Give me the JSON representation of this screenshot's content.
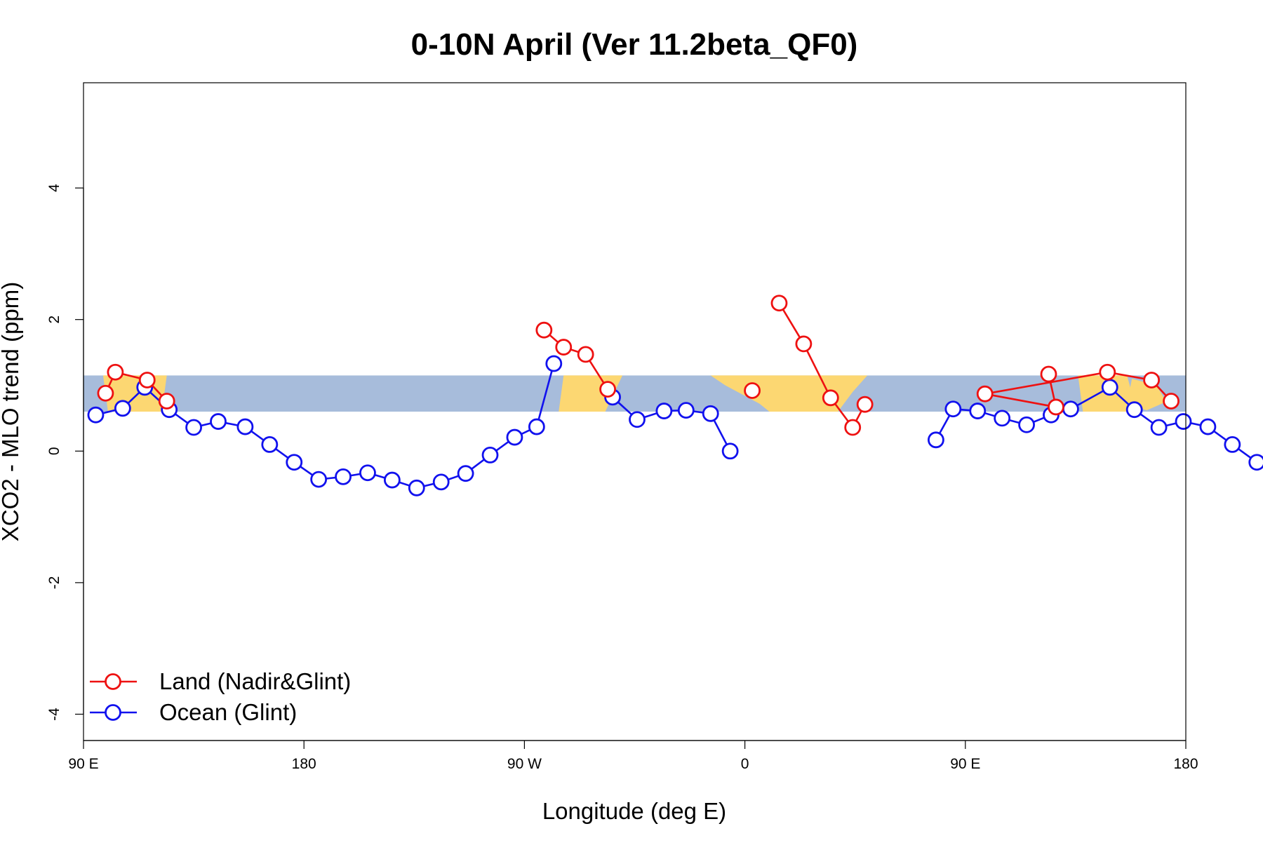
{
  "chart_data": {
    "type": "line",
    "title": "0-10N April (Ver 11.2beta_QF0)",
    "xlabel": "Longitude (deg E)",
    "ylabel": "XCO2 - MLO trend (ppm)",
    "xlim": [
      90,
      540
    ],
    "ylim": [
      -4.4,
      5.6
    ],
    "x_ticks": [
      {
        "value": 90,
        "label": "90 E"
      },
      {
        "value": 180,
        "label": "180"
      },
      {
        "value": 270,
        "label": "90 W"
      },
      {
        "value": 360,
        "label": "0"
      },
      {
        "value": 450,
        "label": "90 E"
      },
      {
        "value": 540,
        "label": "180"
      }
    ],
    "y_ticks": [
      {
        "value": -4,
        "label": "-4"
      },
      {
        "value": -2,
        "label": "-2"
      },
      {
        "value": 0,
        "label": "0"
      },
      {
        "value": 2,
        "label": "2"
      },
      {
        "value": 4,
        "label": "4"
      }
    ],
    "background_band": {
      "ymin": 0.6,
      "ymax": 1.15,
      "description": "land/ocean map strip 0-10N"
    },
    "colors": {
      "land": "#ee1111",
      "ocean": "#1111ee",
      "band_ocean": "#a7bcdb",
      "band_land": "#fcd772"
    },
    "legend": {
      "position": "bottom-left"
    },
    "series": [
      {
        "name": "Land (Nadir&Glint)",
        "color": "#ee1111",
        "segments": [
          [
            [
              99,
              0.88
            ],
            [
              103,
              1.2
            ],
            [
              116,
              1.08
            ],
            [
              124,
              0.76
            ]
          ],
          [
            [
              278,
              1.84
            ],
            [
              286,
              1.58
            ],
            [
              295,
              1.47
            ],
            [
              304,
              0.94
            ]
          ],
          [
            [
              363,
              0.92
            ]
          ],
          [
            [
              374,
              2.25
            ],
            [
              384,
              1.63
            ],
            [
              395,
              0.81
            ],
            [
              404,
              0.36
            ],
            [
              409,
              0.71
            ]
          ],
          [
            [
              484,
              1.17
            ],
            [
              487,
              0.67
            ],
            [
              458,
              0.87
            ],
            [
              508,
              1.2
            ],
            [
              526,
              1.08
            ],
            [
              534,
              0.76
            ]
          ]
        ]
      },
      {
        "name": "Ocean (Glint)",
        "color": "#1111ee",
        "segments": [
          [
            [
              95,
              0.55
            ],
            [
              106,
              0.65
            ],
            [
              115,
              0.97
            ],
            [
              125,
              0.63
            ],
            [
              135,
              0.36
            ],
            [
              145,
              0.45
            ],
            [
              156,
              0.37
            ],
            [
              166,
              0.1
            ],
            [
              176,
              -0.17
            ],
            [
              186,
              -0.43
            ],
            [
              196,
              -0.39
            ],
            [
              206,
              -0.33
            ],
            [
              216,
              -0.44
            ],
            [
              226,
              -0.56
            ],
            [
              236,
              -0.47
            ],
            [
              246,
              -0.34
            ],
            [
              256,
              -0.06
            ],
            [
              266,
              0.21
            ],
            [
              275,
              0.37
            ],
            [
              282,
              1.33
            ]
          ],
          [
            [
              306,
              0.82
            ],
            [
              316,
              0.48
            ],
            [
              327,
              0.61
            ],
            [
              336,
              0.62
            ],
            [
              346,
              0.57
            ],
            [
              354,
              0.0
            ]
          ],
          [
            [
              438,
              0.17
            ],
            [
              445,
              0.64
            ],
            [
              455,
              0.61
            ],
            [
              465,
              0.5
            ],
            [
              475,
              0.4
            ],
            [
              485,
              0.55
            ],
            [
              493,
              0.64
            ],
            [
              509,
              0.97
            ],
            [
              519,
              0.63
            ],
            [
              529,
              0.36
            ],
            [
              539,
              0.45
            ],
            [
              549,
              0.37
            ],
            [
              559,
              0.1
            ],
            [
              569,
              -0.17
            ]
          ]
        ]
      }
    ]
  }
}
